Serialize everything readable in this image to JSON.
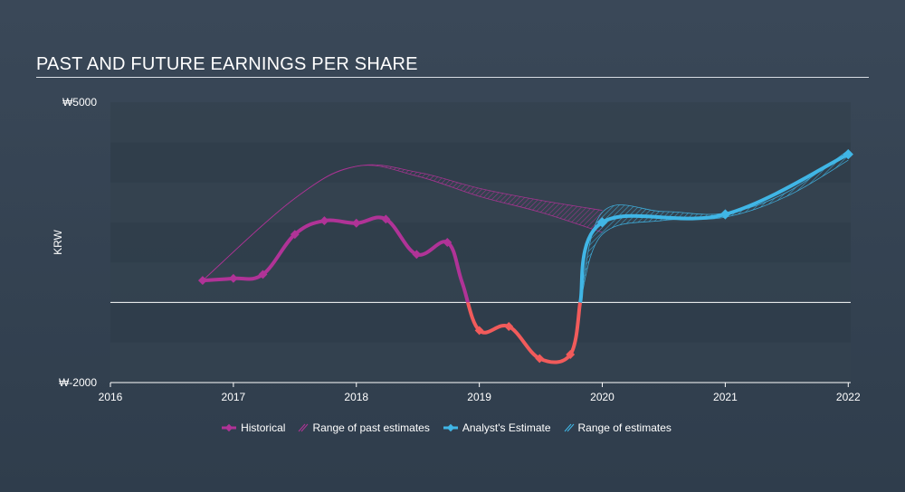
{
  "title": "PAST AND FUTURE EARNINGS PER SHARE",
  "colors": {
    "historical": "#b03397",
    "historical_negative": "#f15b5b",
    "estimate": "#40b6e6",
    "grid_band": "#35434f",
    "zero_line": "#ffffff"
  },
  "chart_data": {
    "type": "line",
    "title": "PAST AND FUTURE EARNINGS PER SHARE",
    "ylabel": "KRW",
    "y_tick_labels": [
      "₩5000",
      "₩-2000"
    ],
    "ylim": [
      -2000,
      5000
    ],
    "xlim": [
      2016,
      2022.02
    ],
    "x_tick_labels": [
      "2016",
      "2017",
      "2018",
      "2019",
      "2020",
      "2021",
      "2022"
    ],
    "series": [
      {
        "name": "Historical",
        "color": "#b03397",
        "negative_color": "#f15b5b",
        "x": [
          2016.75,
          2017.0,
          2017.24,
          2017.5,
          2017.74,
          2018.0,
          2018.24,
          2018.49,
          2018.74,
          2018.86,
          2019.0,
          2019.24,
          2019.49,
          2019.74,
          2019.82
        ],
        "y": [
          550,
          600,
          700,
          1700,
          2040,
          1980,
          2080,
          1200,
          1500,
          500,
          -700,
          -600,
          -1400,
          -1300,
          0
        ]
      },
      {
        "name": "Analyst's Estimate",
        "color": "#40b6e6",
        "x": [
          2019.82,
          2020.0,
          2021.0,
          2022.0
        ],
        "y": [
          0,
          2000,
          2200,
          3700
        ]
      }
    ],
    "ranges": [
      {
        "name": "Range of past estimates",
        "color": "#b03397",
        "x": [
          2016.75,
          2017.5,
          2018.0,
          2018.5,
          2019.0,
          2019.5,
          2020.0
        ],
        "high": [
          550,
          2600,
          3400,
          3250,
          2850,
          2550,
          2300
        ],
        "low": [
          550,
          2600,
          3400,
          3150,
          2650,
          2250,
          1750
        ]
      },
      {
        "name": "Range of estimates",
        "color": "#40b6e6",
        "x": [
          2019.82,
          2020.0,
          2020.5,
          2021.0,
          2021.5,
          2022.0
        ],
        "high": [
          0,
          2250,
          2270,
          2230,
          2750,
          3800
        ],
        "low": [
          0,
          1700,
          2050,
          2130,
          2650,
          3550
        ]
      }
    ],
    "legend": {
      "position": "bottom-center",
      "items": [
        "Historical",
        "Range of past estimates",
        "Analyst's Estimate",
        "Range of estimates"
      ]
    },
    "grid": "horizontal-bands"
  }
}
